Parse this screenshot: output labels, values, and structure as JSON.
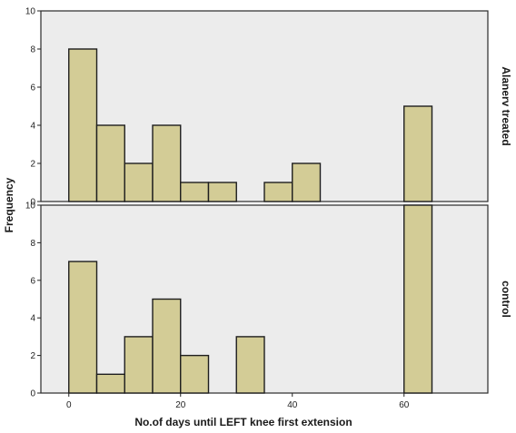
{
  "chart_data": {
    "type": "bar",
    "xlabel": "No.of days until LEFT knee first extension",
    "ylabel": "Frequency",
    "bin_width": 5,
    "xlim": [
      -5,
      75
    ],
    "ylim": [
      0,
      10
    ],
    "x_ticks": [
      0,
      20,
      40,
      60
    ],
    "y_ticks": [
      0,
      2,
      4,
      6,
      8,
      10
    ],
    "grid": false,
    "bar_color": "#d3cc96",
    "panel_color": "#ececec",
    "panels": [
      {
        "label": "Alanerv treated",
        "bins": [
          {
            "x0": 0,
            "x1": 5,
            "value": 8
          },
          {
            "x0": 5,
            "x1": 10,
            "value": 4
          },
          {
            "x0": 10,
            "x1": 15,
            "value": 2
          },
          {
            "x0": 15,
            "x1": 20,
            "value": 4
          },
          {
            "x0": 20,
            "x1": 25,
            "value": 1
          },
          {
            "x0": 25,
            "x1": 30,
            "value": 1
          },
          {
            "x0": 35,
            "x1": 40,
            "value": 1
          },
          {
            "x0": 40,
            "x1": 45,
            "value": 2
          },
          {
            "x0": 60,
            "x1": 65,
            "value": 5
          }
        ]
      },
      {
        "label": "control",
        "bins": [
          {
            "x0": 0,
            "x1": 5,
            "value": 7
          },
          {
            "x0": 5,
            "x1": 10,
            "value": 1
          },
          {
            "x0": 10,
            "x1": 15,
            "value": 3
          },
          {
            "x0": 15,
            "x1": 20,
            "value": 5
          },
          {
            "x0": 20,
            "x1": 25,
            "value": 2
          },
          {
            "x0": 30,
            "x1": 35,
            "value": 3
          },
          {
            "x0": 60,
            "x1": 65,
            "value": 10
          }
        ]
      }
    ]
  }
}
